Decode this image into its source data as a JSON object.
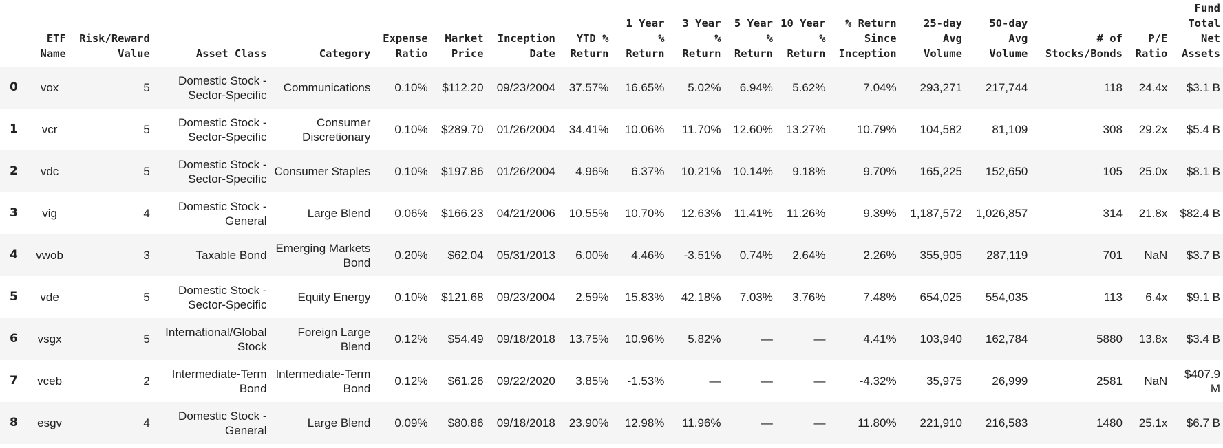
{
  "table": {
    "headers": [
      "",
      "ETF Name",
      "Risk/Reward Value",
      "Asset Class",
      "Category",
      "Expense Ratio",
      "Market Price",
      "Inception Date",
      "YTD % Return",
      "1 Year % Return",
      "3 Year % Return",
      "5 Year % Return",
      "10 Year % Return",
      "% Return Since Inception",
      "25-day Avg Volume",
      "50-day Avg Volume",
      "# of Stocks/Bonds",
      "P/E Ratio",
      "Fund Total Net Assets"
    ],
    "rows": [
      [
        "0",
        "vox",
        "5",
        "Domestic Stock - Sector-Specific",
        "Communications",
        "0.10%",
        "$112.20",
        "09/23/2004",
        "37.57%",
        "16.65%",
        "5.02%",
        "6.94%",
        "5.62%",
        "7.04%",
        "293,271",
        "217,744",
        "118",
        "24.4x",
        "$3.1 B"
      ],
      [
        "1",
        "vcr",
        "5",
        "Domestic Stock - Sector-Specific",
        "Consumer Discretionary",
        "0.10%",
        "$289.70",
        "01/26/2004",
        "34.41%",
        "10.06%",
        "11.70%",
        "12.60%",
        "13.27%",
        "10.79%",
        "104,582",
        "81,109",
        "308",
        "29.2x",
        "$5.4 B"
      ],
      [
        "2",
        "vdc",
        "5",
        "Domestic Stock - Sector-Specific",
        "Consumer Staples",
        "0.10%",
        "$197.86",
        "01/26/2004",
        "4.96%",
        "6.37%",
        "10.21%",
        "10.14%",
        "9.18%",
        "9.70%",
        "165,225",
        "152,650",
        "105",
        "25.0x",
        "$8.1 B"
      ],
      [
        "3",
        "vig",
        "4",
        "Domestic Stock - General",
        "Large Blend",
        "0.06%",
        "$166.23",
        "04/21/2006",
        "10.55%",
        "10.70%",
        "12.63%",
        "11.41%",
        "11.26%",
        "9.39%",
        "1,187,572",
        "1,026,857",
        "314",
        "21.8x",
        "$82.4 B"
      ],
      [
        "4",
        "vwob",
        "3",
        "Taxable Bond",
        "Emerging Markets Bond",
        "0.20%",
        "$62.04",
        "05/31/2013",
        "6.00%",
        "4.46%",
        "-3.51%",
        "0.74%",
        "2.64%",
        "2.26%",
        "355,905",
        "287,119",
        "701",
        "NaN",
        "$3.7 B"
      ],
      [
        "5",
        "vde",
        "5",
        "Domestic Stock - Sector-Specific",
        "Equity Energy",
        "0.10%",
        "$121.68",
        "09/23/2004",
        "2.59%",
        "15.83%",
        "42.18%",
        "7.03%",
        "3.76%",
        "7.48%",
        "654,025",
        "554,035",
        "113",
        "6.4x",
        "$9.1 B"
      ],
      [
        "6",
        "vsgx",
        "5",
        "International/Global Stock",
        "Foreign Large Blend",
        "0.12%",
        "$54.49",
        "09/18/2018",
        "13.75%",
        "10.96%",
        "5.82%",
        "—",
        "—",
        "4.41%",
        "103,940",
        "162,784",
        "5880",
        "13.8x",
        "$3.4 B"
      ],
      [
        "7",
        "vceb",
        "2",
        "Intermediate-Term Bond",
        "Intermediate-Term Bond",
        "0.12%",
        "$61.26",
        "09/22/2020",
        "3.85%",
        "-1.53%",
        "—",
        "—",
        "—",
        "-4.32%",
        "35,975",
        "26,999",
        "2581",
        "NaN",
        "$407.9 M"
      ],
      [
        "8",
        "esgv",
        "4",
        "Domestic Stock - General",
        "Large Blend",
        "0.09%",
        "$80.86",
        "09/18/2018",
        "23.90%",
        "12.98%",
        "11.96%",
        "—",
        "—",
        "11.80%",
        "221,910",
        "216,583",
        "1480",
        "25.1x",
        "$6.7 B"
      ]
    ]
  }
}
